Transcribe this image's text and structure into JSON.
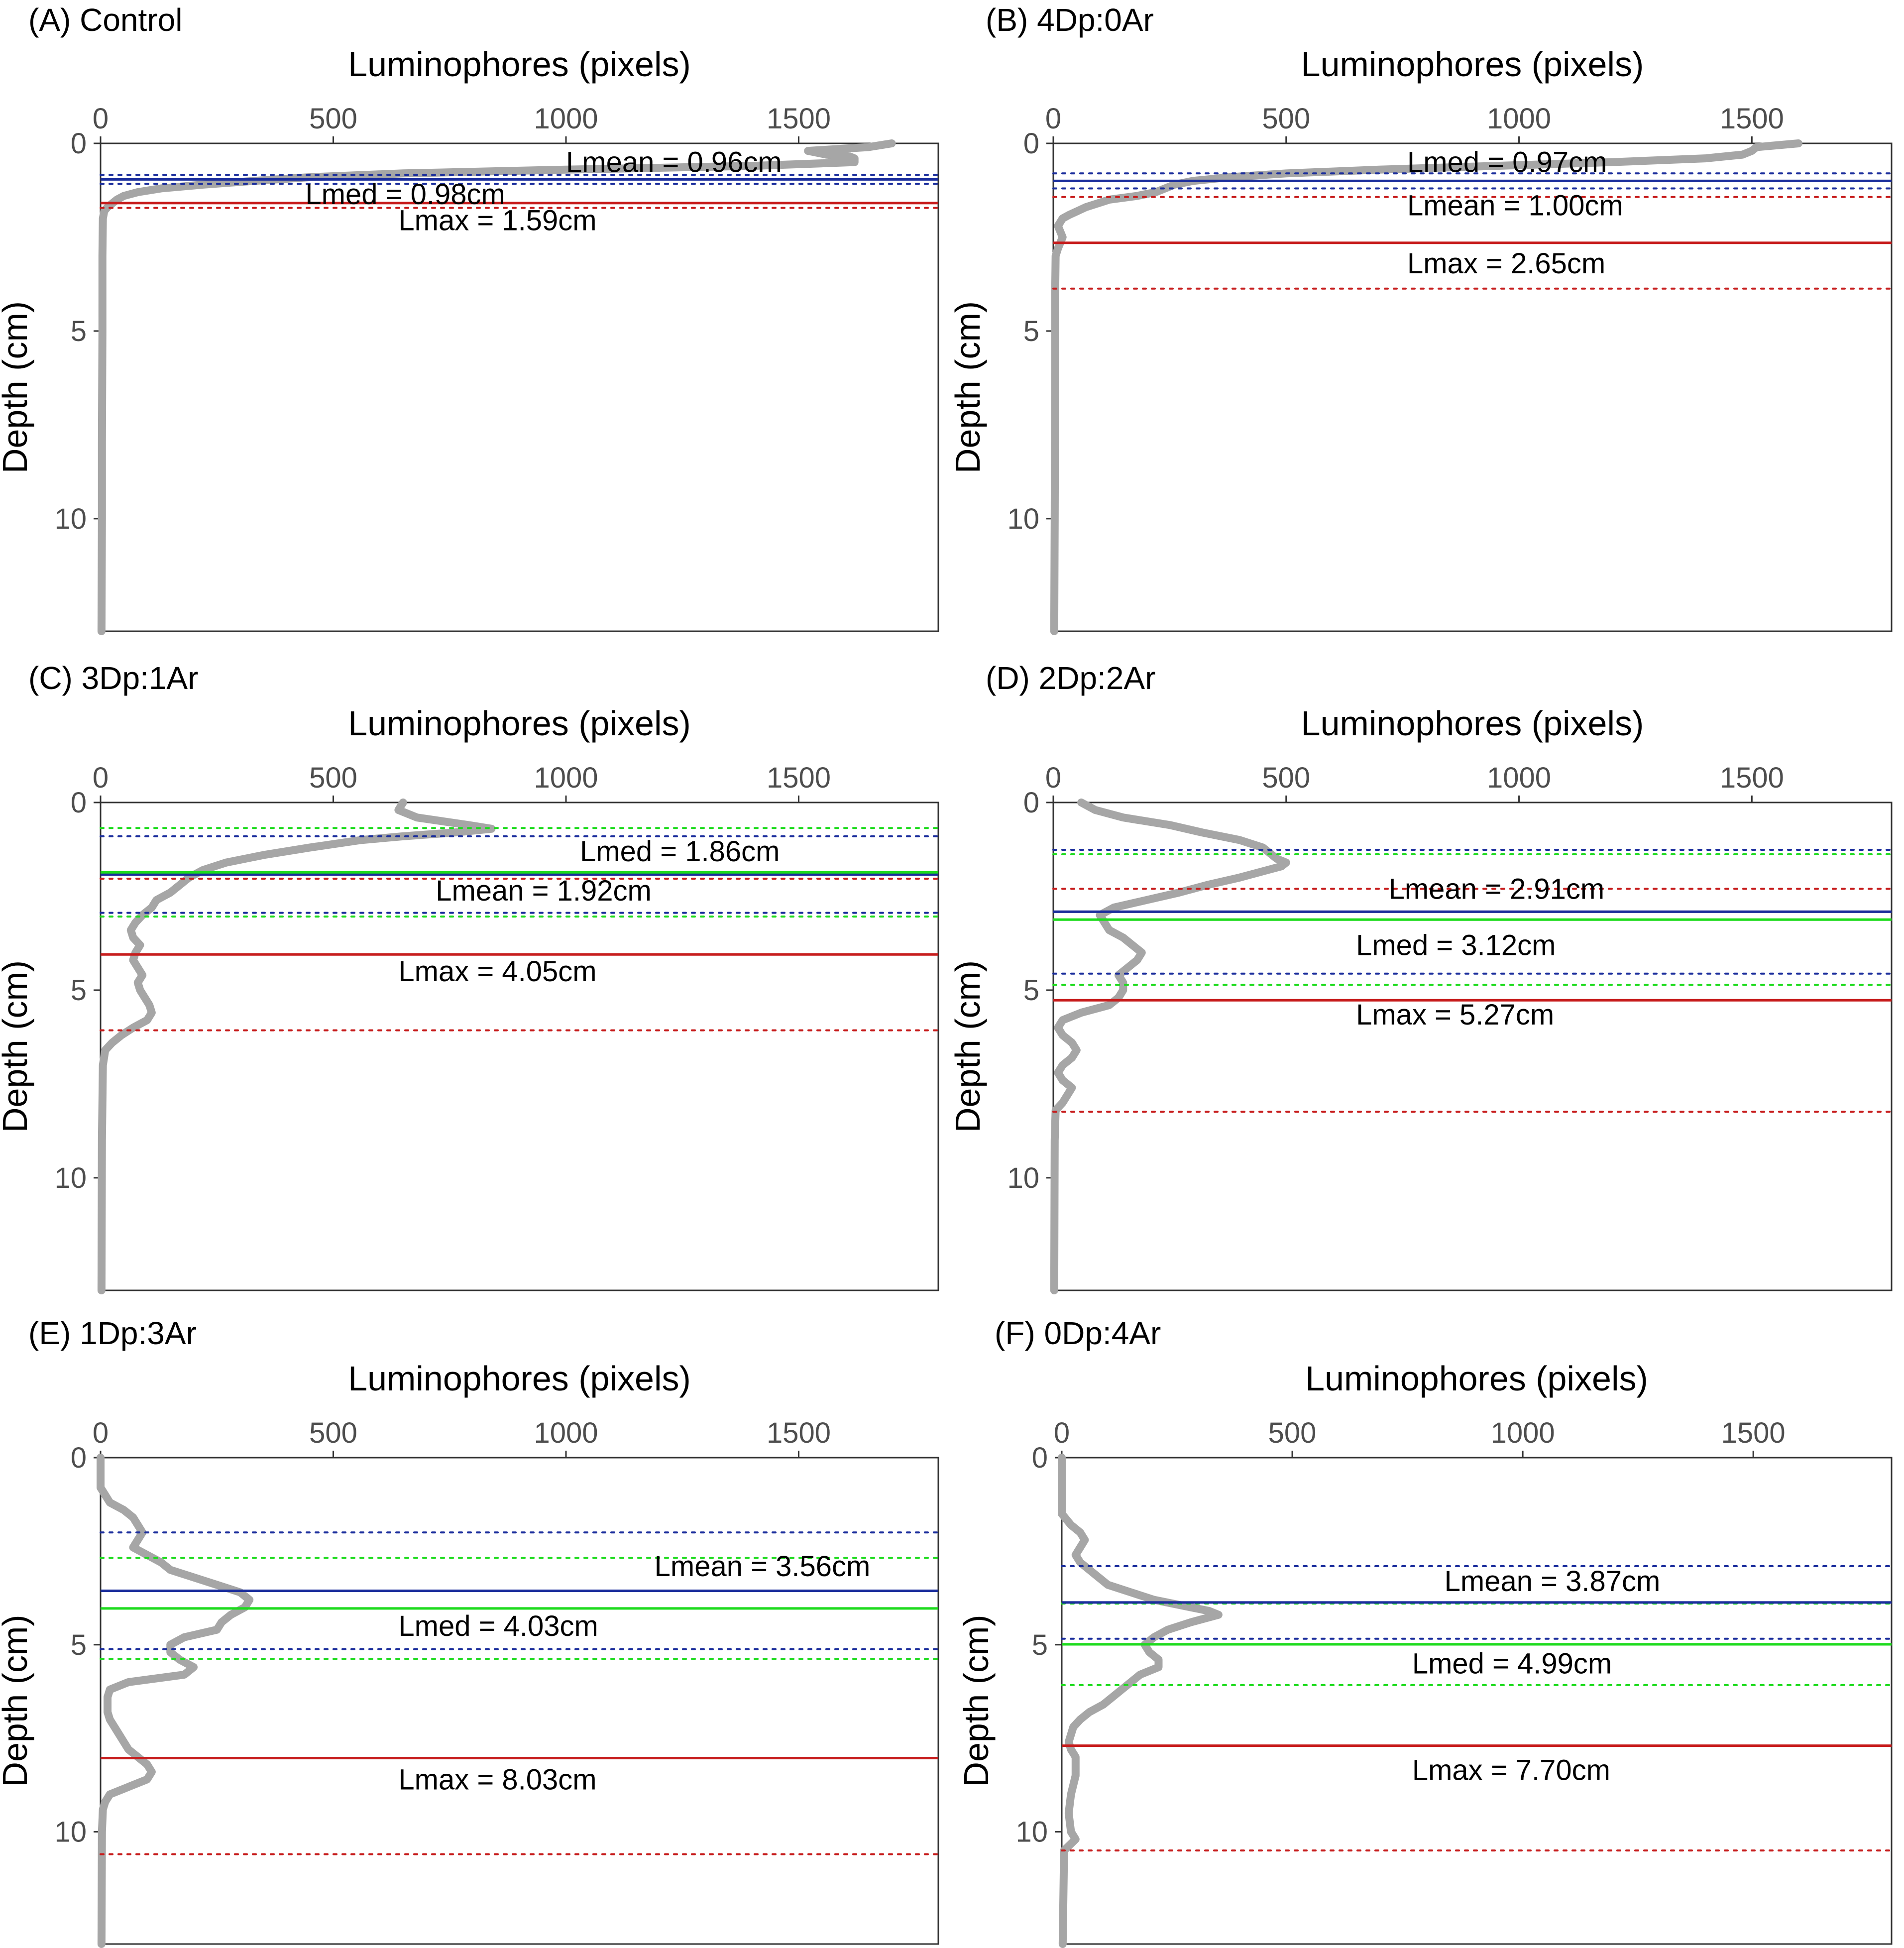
{
  "chart_data": [
    {
      "type": "line",
      "panel": "A",
      "title": "(A) Control",
      "xlabel": "Luminophores (pixels)",
      "ylabel": "Depth (cm)",
      "xlim": [
        0,
        1800
      ],
      "ylim": [
        0,
        13
      ],
      "xticks": [
        0,
        500,
        1000,
        1500
      ],
      "yticks": [
        0,
        5,
        10
      ],
      "profile": {
        "depth": [
          0,
          0.1,
          0.2,
          0.3,
          0.35,
          0.4,
          0.5,
          0.6,
          0.7,
          0.8,
          0.9,
          1.0,
          1.1,
          1.2,
          1.3,
          1.4,
          1.5,
          1.6,
          1.7,
          1.8,
          2.0,
          3,
          5,
          8,
          10,
          13
        ],
        "value": [
          1700,
          1650,
          1520,
          1560,
          1610,
          1620,
          1620,
          1400,
          1000,
          650,
          450,
          330,
          220,
          130,
          80,
          50,
          35,
          25,
          15,
          8,
          5,
          4,
          4,
          3,
          3,
          2
        ]
      },
      "lines": [
        {
          "kind": "mean",
          "color": "#1a2d9c",
          "depth": 0.96,
          "ci": [
            0.84,
            1.08
          ],
          "label": "Lmean = 0.96cm"
        },
        {
          "kind": "median",
          "color": "#1ddb1d",
          "depth": 0.98,
          "ci": [],
          "label": "Lmed = 0.98cm"
        },
        {
          "kind": "max",
          "color": "#c71d1d",
          "depth": 1.59,
          "ci": [
            1.72
          ],
          "label": "Lmax = 1.59cm"
        }
      ]
    },
    {
      "type": "line",
      "panel": "B",
      "title": "(B) 4Dp:0Ar",
      "xlabel": "Luminophores (pixels)",
      "ylabel": "Depth (cm)",
      "xlim": [
        0,
        1800
      ],
      "ylim": [
        0,
        13
      ],
      "xticks": [
        0,
        500,
        1000,
        1500
      ],
      "yticks": [
        0,
        5,
        10
      ],
      "profile": {
        "depth": [
          0,
          0.1,
          0.2,
          0.3,
          0.4,
          0.5,
          0.6,
          0.7,
          0.8,
          0.9,
          1.0,
          1.1,
          1.2,
          1.3,
          1.4,
          1.5,
          1.7,
          1.9,
          2.0,
          2.2,
          2.5,
          2.8,
          3.0,
          4,
          6,
          10,
          13
        ],
        "value": [
          1600,
          1510,
          1500,
          1480,
          1400,
          1200,
          950,
          700,
          500,
          380,
          300,
          260,
          240,
          220,
          180,
          120,
          70,
          35,
          20,
          10,
          20,
          10,
          5,
          4,
          4,
          3,
          2
        ]
      },
      "lines": [
        {
          "kind": "mean",
          "color": "#1a2d9c",
          "depth": 1.0,
          "ci": [
            0.8,
            1.2
          ],
          "label": "Lmean = 1.00cm"
        },
        {
          "kind": "median",
          "color": "#1ddb1d",
          "depth": 0.97,
          "ci": [],
          "label": "Lmed = 0.97cm"
        },
        {
          "kind": "max",
          "color": "#c71d1d",
          "depth": 2.65,
          "ci": [
            1.43,
            3.87
          ],
          "label": "Lmax = 2.65cm"
        }
      ]
    },
    {
      "type": "line",
      "panel": "C",
      "title": "(C) 3Dp:1Ar",
      "xlabel": "Luminophores (pixels)",
      "ylabel": "Depth (cm)",
      "xlim": [
        0,
        1800
      ],
      "ylim": [
        0,
        13
      ],
      "xticks": [
        0,
        500,
        1000,
        1500
      ],
      "yticks": [
        0,
        5,
        10
      ],
      "profile": {
        "depth": [
          0,
          0.2,
          0.4,
          0.6,
          0.7,
          0.8,
          0.9,
          1.0,
          1.2,
          1.4,
          1.6,
          1.8,
          2.0,
          2.2,
          2.4,
          2.6,
          2.8,
          3.0,
          3.2,
          3.4,
          3.6,
          3.8,
          4.0,
          4.2,
          4.4,
          4.6,
          4.8,
          5.0,
          5.2,
          5.4,
          5.6,
          5.8,
          6.0,
          6.2,
          6.4,
          6.6,
          7,
          9,
          13
        ],
        "value": [
          650,
          640,
          680,
          790,
          840,
          760,
          650,
          560,
          450,
          350,
          270,
          220,
          190,
          170,
          150,
          120,
          110,
          90,
          75,
          65,
          70,
          85,
          75,
          70,
          80,
          90,
          80,
          85,
          95,
          105,
          110,
          100,
          70,
          45,
          25,
          10,
          5,
          3,
          2
        ]
      },
      "lines": [
        {
          "kind": "mean",
          "color": "#1a2d9c",
          "depth": 1.92,
          "ci": [
            0.9,
            2.94
          ],
          "label": "Lmean = 1.92cm"
        },
        {
          "kind": "median",
          "color": "#1ddb1d",
          "depth": 1.86,
          "ci": [
            0.68,
            3.04
          ],
          "label": "Lmed = 1.86cm"
        },
        {
          "kind": "max",
          "color": "#c71d1d",
          "depth": 4.05,
          "ci": [
            2.03,
            6.07
          ],
          "label": "Lmax = 4.05cm"
        }
      ]
    },
    {
      "type": "line",
      "panel": "D",
      "title": "(D) 2Dp:2Ar",
      "xlabel": "Luminophores (pixels)",
      "ylabel": "Depth (cm)",
      "xlim": [
        0,
        1800
      ],
      "ylim": [
        0,
        13
      ],
      "xticks": [
        0,
        500,
        1000,
        1500
      ],
      "yticks": [
        0,
        5,
        10
      ],
      "profile": {
        "depth": [
          0,
          0.2,
          0.4,
          0.6,
          0.8,
          1.0,
          1.2,
          1.4,
          1.5,
          1.6,
          1.7,
          1.8,
          2.0,
          2.2,
          2.4,
          2.6,
          2.8,
          3.0,
          3.2,
          3.4,
          3.6,
          3.8,
          4.0,
          4.2,
          4.4,
          4.6,
          4.8,
          5.0,
          5.2,
          5.4,
          5.6,
          5.8,
          6.0,
          6.2,
          6.4,
          6.6,
          6.8,
          7.0,
          7.2,
          7.4,
          7.6,
          7.8,
          8.0,
          8.2,
          9,
          13
        ],
        "value": [
          60,
          90,
          150,
          250,
          320,
          400,
          450,
          470,
          480,
          500,
          490,
          460,
          400,
          330,
          270,
          200,
          130,
          100,
          110,
          120,
          150,
          170,
          190,
          180,
          160,
          140,
          150,
          150,
          140,
          120,
          60,
          20,
          10,
          20,
          40,
          50,
          40,
          20,
          10,
          20,
          40,
          30,
          20,
          5,
          3,
          2
        ]
      },
      "lines": [
        {
          "kind": "mean",
          "color": "#1a2d9c",
          "depth": 2.91,
          "ci": [
            1.26,
            4.56
          ],
          "label": "Lmean = 2.91cm"
        },
        {
          "kind": "median",
          "color": "#1ddb1d",
          "depth": 3.12,
          "ci": [
            1.38,
            4.86
          ],
          "label": "Lmed = 3.12cm"
        },
        {
          "kind": "max",
          "color": "#c71d1d",
          "depth": 5.27,
          "ci": [
            2.3,
            8.24
          ],
          "label": "Lmax = 5.27cm"
        }
      ]
    },
    {
      "type": "line",
      "panel": "E",
      "title": "(E) 1Dp:3Ar",
      "xlabel": "Luminophores (pixels)",
      "ylabel": "Depth (cm)",
      "xlim": [
        0,
        1800
      ],
      "ylim": [
        0,
        13
      ],
      "xticks": [
        0,
        500,
        1000,
        1500
      ],
      "yticks": [
        0,
        5,
        10
      ],
      "profile": {
        "depth": [
          0,
          0.8,
          1.0,
          1.2,
          1.4,
          1.6,
          1.8,
          2.0,
          2.2,
          2.4,
          2.6,
          2.8,
          3.0,
          3.2,
          3.4,
          3.6,
          3.8,
          4.0,
          4.2,
          4.4,
          4.6,
          4.8,
          5.0,
          5.2,
          5.4,
          5.6,
          5.8,
          6.0,
          6.2,
          6.4,
          6.6,
          6.8,
          7.0,
          7.2,
          7.4,
          7.6,
          7.8,
          8.0,
          8.2,
          8.4,
          8.6,
          8.8,
          9.0,
          9.2,
          9.4,
          10,
          13
        ],
        "value": [
          0,
          0,
          10,
          20,
          50,
          70,
          80,
          90,
          80,
          70,
          100,
          130,
          150,
          200,
          250,
          300,
          320,
          310,
          280,
          260,
          250,
          180,
          150,
          150,
          170,
          200,
          180,
          60,
          20,
          15,
          15,
          15,
          20,
          30,
          40,
          50,
          60,
          80,
          100,
          110,
          100,
          60,
          20,
          10,
          5,
          3,
          2
        ]
      },
      "lines": [
        {
          "kind": "mean",
          "color": "#1a2d9c",
          "depth": 3.56,
          "ci": [
            2.0,
            5.12
          ],
          "label": "Lmean = 3.56cm"
        },
        {
          "kind": "median",
          "color": "#1ddb1d",
          "depth": 4.03,
          "ci": [
            2.68,
            5.38
          ],
          "label": "Lmed = 4.03cm"
        },
        {
          "kind": "max",
          "color": "#c71d1d",
          "depth": 8.03,
          "ci": [
            10.6
          ],
          "label": "Lmax = 8.03cm"
        }
      ]
    },
    {
      "type": "line",
      "panel": "F",
      "title": "(F) 0Dp:4Ar",
      "xlabel": "Luminophores (pixels)",
      "ylabel": "Depth (cm)",
      "xlim": [
        0,
        1800
      ],
      "ylim": [
        0,
        13
      ],
      "xticks": [
        0,
        500,
        1000,
        1500
      ],
      "yticks": [
        0,
        5,
        10
      ],
      "profile": {
        "depth": [
          0,
          1.5,
          1.8,
          2.0,
          2.2,
          2.4,
          2.6,
          2.8,
          3.0,
          3.2,
          3.4,
          3.6,
          3.8,
          4.0,
          4.1,
          4.2,
          4.3,
          4.4,
          4.6,
          4.8,
          5.0,
          5.2,
          5.4,
          5.6,
          5.8,
          6.0,
          6.2,
          6.4,
          6.6,
          6.8,
          7.0,
          7.2,
          7.4,
          7.6,
          7.8,
          8.0,
          8.5,
          9.0,
          9.5,
          10.0,
          10.2,
          10.5,
          13
        ],
        "value": [
          0,
          0,
          20,
          40,
          50,
          40,
          30,
          40,
          60,
          80,
          100,
          150,
          200,
          280,
          320,
          340,
          310,
          280,
          230,
          200,
          180,
          190,
          210,
          210,
          170,
          150,
          130,
          110,
          90,
          60,
          40,
          25,
          20,
          15,
          20,
          30,
          30,
          20,
          15,
          20,
          30,
          5,
          2
        ]
      },
      "lines": [
        {
          "kind": "mean",
          "color": "#1a2d9c",
          "depth": 3.87,
          "ci": [
            2.9,
            4.84
          ],
          "label": "Lmean = 3.87cm"
        },
        {
          "kind": "median",
          "color": "#1ddb1d",
          "depth": 4.99,
          "ci": [
            3.9,
            6.08
          ],
          "label": "Lmed = 4.99cm"
        },
        {
          "kind": "max",
          "color": "#c71d1d",
          "depth": 7.7,
          "ci": [
            10.5
          ],
          "label": "Lmax = 7.70cm"
        }
      ]
    }
  ]
}
